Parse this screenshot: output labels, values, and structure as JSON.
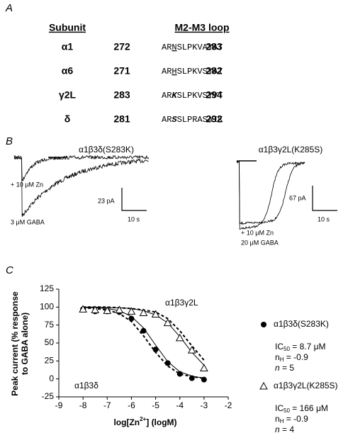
{
  "panel_a": {
    "letter": "A",
    "headers": [
      "Subunit",
      "M2-M3 loop"
    ],
    "rows": [
      {
        "subunit": "α1",
        "start": "272",
        "seq": {
          "pre": "AR",
          "mark": "N",
          "post": "SLPKVAYAT"
        },
        "end": "283",
        "mark_style": "underline"
      },
      {
        "subunit": "α6",
        "start": "271",
        "seq": {
          "pre": "AR",
          "mark": "H",
          "post": "SLPKVSYAT"
        },
        "end": "282",
        "mark_style": "underline"
      },
      {
        "subunit": "γ2L",
        "start": "283",
        "seq": {
          "pre": "AR",
          "mark": "K",
          "post": "SLPKVSYVT"
        },
        "end": "294",
        "mark_style": "bold-italic"
      },
      {
        "subunit": "δ",
        "start": "281",
        "seq": {
          "pre": "AR",
          "mark": "S",
          "post": "SLPRASAIK"
        },
        "end": "292",
        "mark_style": "bold-italic"
      }
    ]
  },
  "panel_b": {
    "letter": "B",
    "left": {
      "title": "α1β3δ(S283K)",
      "zn": "+ 10 μM Zn",
      "gaba": "3 μM GABA",
      "scale_current": "23 pA",
      "scale_time": "10 s"
    },
    "right": {
      "title": "α1β3γ2L(K285S)",
      "zn": "+ 10 μM Zn",
      "gaba": "20 μM GABA",
      "scale_current": "67 pA",
      "scale_time": "10 s"
    }
  },
  "chart_data": {
    "type": "scatter",
    "letter": "C",
    "y_label": [
      "Peak current (% response",
      "to GABA alone)"
    ],
    "x_label": {
      "pre": "log[Zn",
      "sup": "2+",
      "post": "]  (logM)"
    },
    "xlim": [
      -9,
      -2
    ],
    "xticks": [
      -9,
      -8,
      -7,
      -6,
      -5,
      -4,
      -3,
      -2
    ],
    "ylim": [
      -25,
      125
    ],
    "yticks": [
      -25,
      0,
      25,
      50,
      75,
      100,
      125
    ],
    "annotations": [
      "α1β3γ2L",
      "α1β3δ"
    ],
    "x": [
      -8,
      -7.5,
      -7,
      -6.5,
      -6,
      -5.5,
      -5,
      -4.5,
      -4,
      -3.5,
      -3
    ],
    "series": [
      {
        "name": "α1β3δ(S283K)",
        "marker": "filled-circle",
        "color": "#000000",
        "values": [
          97,
          94,
          94,
          93,
          84,
          67,
          41,
          22,
          7,
          1,
          -1
        ],
        "stats": {
          "ic": [
            "IC",
            "50",
            " = 8.7 μM"
          ],
          "nh": [
            "n",
            "H",
            " = -0.9"
          ],
          "n": [
            "n",
            " = 5"
          ]
        }
      },
      {
        "name": "α1β3γ2L(K285S)",
        "marker": "open-triangle",
        "color": "#000000",
        "values": [
          97,
          96,
          95,
          96,
          94,
          92,
          90,
          78,
          57,
          40,
          15
        ],
        "stats": {
          "ic": [
            "IC",
            "50",
            " = 166 μM"
          ],
          "nh": [
            "n",
            "H",
            " = -0.9"
          ],
          "n": [
            "n",
            " = 4"
          ]
        }
      }
    ],
    "curves": [
      {
        "style": "solid",
        "values": [
          99,
          99,
          98,
          95,
          87,
          71,
          47,
          24,
          10,
          4,
          1
        ]
      },
      {
        "style": "dashed",
        "values": [
          99,
          98,
          96,
          91,
          80,
          60,
          37,
          18,
          7,
          3,
          1
        ]
      },
      {
        "style": "solid",
        "values": [
          100,
          100,
          99,
          99,
          98,
          95,
          89,
          78,
          59,
          37,
          19
        ]
      },
      {
        "style": "dashed",
        "values": [
          100,
          100,
          100,
          99,
          98,
          96,
          93,
          84,
          67,
          46,
          26
        ]
      }
    ]
  }
}
